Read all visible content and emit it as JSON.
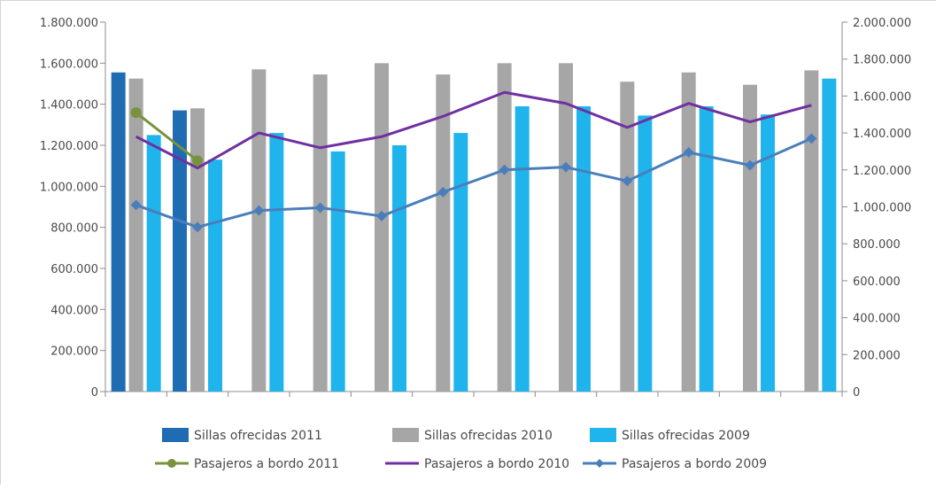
{
  "chart_data": {
    "type": "bar",
    "categories": [
      "",
      "",
      "",
      "",
      "",
      "",
      "",
      "",
      "",
      "",
      "",
      ""
    ],
    "series": [
      {
        "name": "Sillas ofrecidas 2011",
        "kind": "bar",
        "axis": "left",
        "color": "#1f6cb3",
        "values": [
          1555000,
          1370000,
          null,
          null,
          null,
          null,
          null,
          null,
          null,
          null,
          null,
          null
        ]
      },
      {
        "name": "Sillas ofrecidas 2010",
        "kind": "bar",
        "axis": "left",
        "color": "#a6a6a6",
        "values": [
          1525000,
          1380000,
          1570000,
          1545000,
          1600000,
          1545000,
          1600000,
          1600000,
          1510000,
          1555000,
          1495000,
          1565000
        ]
      },
      {
        "name": "Sillas ofrecidas 2009",
        "kind": "bar",
        "axis": "left",
        "color": "#1fb4ec",
        "values": [
          1250000,
          1130000,
          1260000,
          1170000,
          1200000,
          1260000,
          1390000,
          1390000,
          1345000,
          1390000,
          1350000,
          1525000
        ]
      },
      {
        "name": "Pasajeros a bordo 2011",
        "kind": "line",
        "axis": "right",
        "color": "#77933c",
        "marker": "circle",
        "values": [
          1510000,
          1250000,
          null,
          null,
          null,
          null,
          null,
          null,
          null,
          null,
          null,
          null
        ]
      },
      {
        "name": "Pasajeros a bordo 2010",
        "kind": "line",
        "axis": "right",
        "color": "#7030a0",
        "marker": "none",
        "values": [
          1380000,
          1210000,
          1400000,
          1320000,
          1380000,
          1490000,
          1620000,
          1560000,
          1430000,
          1560000,
          1460000,
          1550000
        ]
      },
      {
        "name": "Pasajeros a bordo 2009",
        "kind": "line",
        "axis": "right",
        "color": "#4a7ebb",
        "marker": "diamond",
        "values": [
          1010000,
          890000,
          980000,
          995000,
          950000,
          1080000,
          1200000,
          1215000,
          1140000,
          1295000,
          1225000,
          1370000
        ]
      }
    ],
    "y_left": {
      "range": [
        0,
        1800000
      ],
      "ticks": [
        0,
        200000,
        400000,
        600000,
        800000,
        1000000,
        1200000,
        1400000,
        1600000,
        1800000
      ],
      "tick_labels": [
        "0",
        "200.000",
        "400.000",
        "600.000",
        "800.000",
        "1.000.000",
        "1.200.000",
        "1.400.000",
        "1.600.000",
        "1.800.000"
      ]
    },
    "y_right": {
      "range": [
        0,
        2000000
      ],
      "ticks": [
        0,
        200000,
        400000,
        600000,
        800000,
        1000000,
        1200000,
        1400000,
        1600000,
        1800000,
        2000000
      ],
      "tick_labels": [
        "0",
        "200.000",
        "400.000",
        "600.000",
        "800.000",
        "1.000.000",
        "1.200.000",
        "1.400.000",
        "1.600.000",
        "1.800.000",
        "2.000.000"
      ]
    },
    "grid": false,
    "legend": "bottom"
  }
}
